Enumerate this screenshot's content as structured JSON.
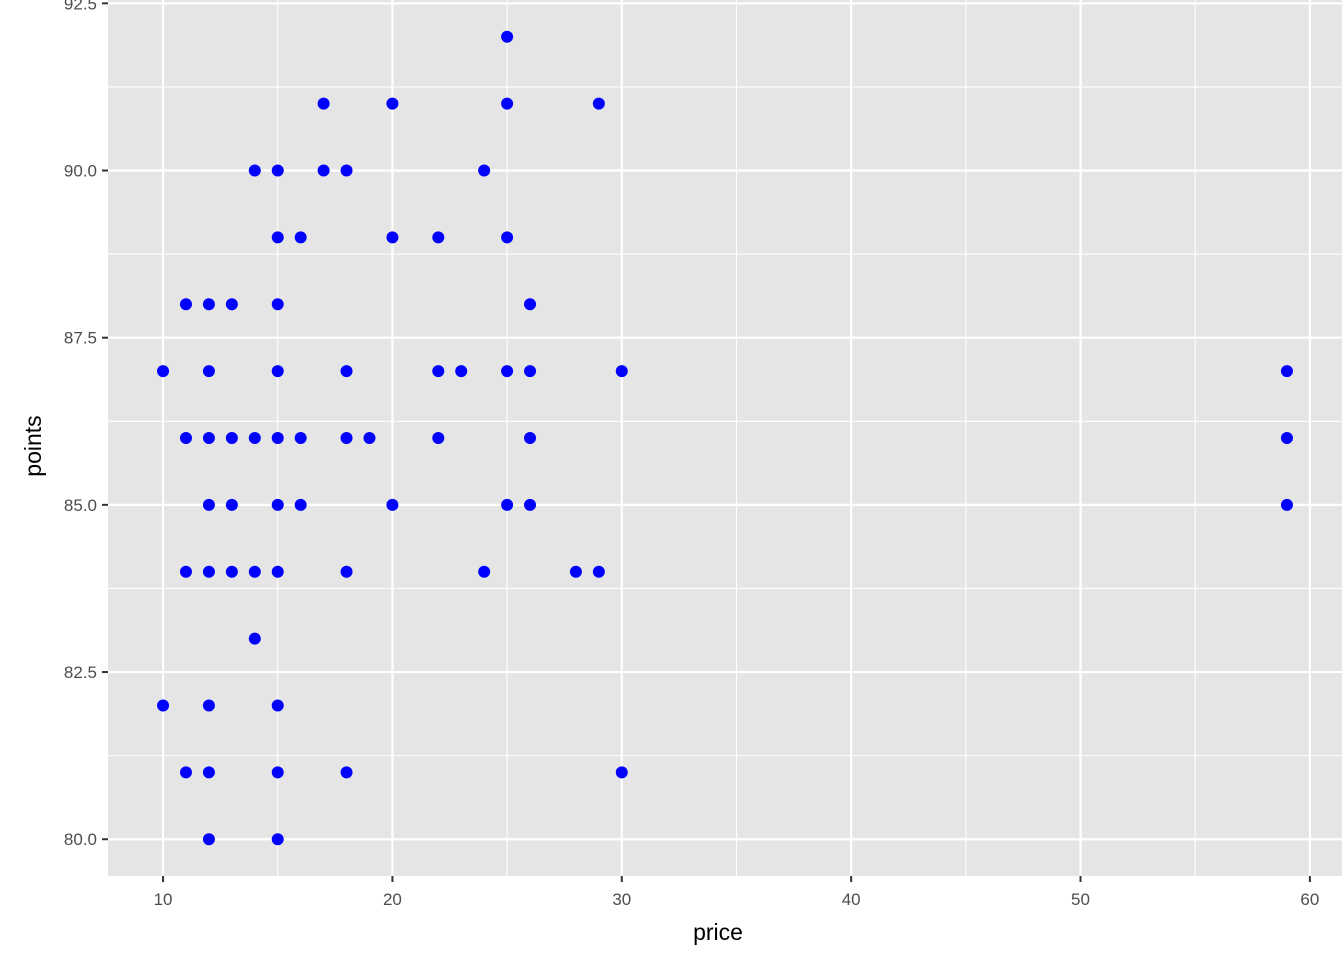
{
  "chart_data": {
    "type": "scatter",
    "title": "",
    "xlabel": "price",
    "ylabel": "points",
    "xlim": [
      7.6,
      61.4
    ],
    "ylim": [
      79.45,
      92.55
    ],
    "x_ticks": [
      10,
      20,
      30,
      40,
      50,
      60
    ],
    "x_tick_labels": [
      "10",
      "20",
      "30",
      "40",
      "50",
      "60"
    ],
    "x_minor_ticks": [
      15,
      25,
      35,
      45,
      55
    ],
    "y_ticks": [
      80.0,
      82.5,
      85.0,
      87.5,
      90.0,
      92.5
    ],
    "y_tick_labels": [
      "80.0",
      "82.5",
      "85.0",
      "87.5",
      "90.0",
      "92.5"
    ],
    "y_minor_ticks": [
      81.25,
      83.75,
      86.25,
      88.75,
      91.25
    ],
    "grid": true,
    "legend": "none",
    "colors": {
      "panel_background": "#e5e5e5",
      "grid_line": "#ffffff",
      "point": "#0000ff",
      "tick_mark": "#333333"
    },
    "series": [
      {
        "points": [
          [
            10,
            87
          ],
          [
            10,
            82
          ],
          [
            11,
            88
          ],
          [
            11,
            86
          ],
          [
            11,
            84
          ],
          [
            11,
            81
          ],
          [
            12,
            88
          ],
          [
            12,
            87
          ],
          [
            12,
            86
          ],
          [
            12,
            85
          ],
          [
            12,
            84
          ],
          [
            12,
            82
          ],
          [
            12,
            81
          ],
          [
            12,
            80
          ],
          [
            13,
            88
          ],
          [
            13,
            86
          ],
          [
            13,
            85
          ],
          [
            13,
            84
          ],
          [
            14,
            90
          ],
          [
            14,
            86
          ],
          [
            14,
            84
          ],
          [
            14,
            83
          ],
          [
            15,
            90
          ],
          [
            15,
            89
          ],
          [
            15,
            88
          ],
          [
            15,
            87
          ],
          [
            15,
            86
          ],
          [
            15,
            85
          ],
          [
            15,
            84
          ],
          [
            15,
            82
          ],
          [
            15,
            81
          ],
          [
            15,
            80
          ],
          [
            16,
            89
          ],
          [
            16,
            86
          ],
          [
            16,
            85
          ],
          [
            17,
            91
          ],
          [
            17,
            90
          ],
          [
            18,
            90
          ],
          [
            18,
            87
          ],
          [
            18,
            86
          ],
          [
            18,
            84
          ],
          [
            18,
            81
          ],
          [
            19,
            86
          ],
          [
            20,
            91
          ],
          [
            20,
            89
          ],
          [
            20,
            85
          ],
          [
            22,
            89
          ],
          [
            22,
            87
          ],
          [
            22,
            86
          ],
          [
            23,
            87
          ],
          [
            24,
            90
          ],
          [
            24,
            84
          ],
          [
            25,
            92
          ],
          [
            25,
            91
          ],
          [
            25,
            89
          ],
          [
            25,
            87
          ],
          [
            25,
            85
          ],
          [
            26,
            88
          ],
          [
            26,
            87
          ],
          [
            26,
            86
          ],
          [
            26,
            85
          ],
          [
            28,
            84
          ],
          [
            29,
            91
          ],
          [
            29,
            84
          ],
          [
            30,
            87
          ],
          [
            30,
            81
          ],
          [
            59,
            87
          ],
          [
            59,
            86
          ],
          [
            59,
            85
          ]
        ]
      }
    ]
  }
}
